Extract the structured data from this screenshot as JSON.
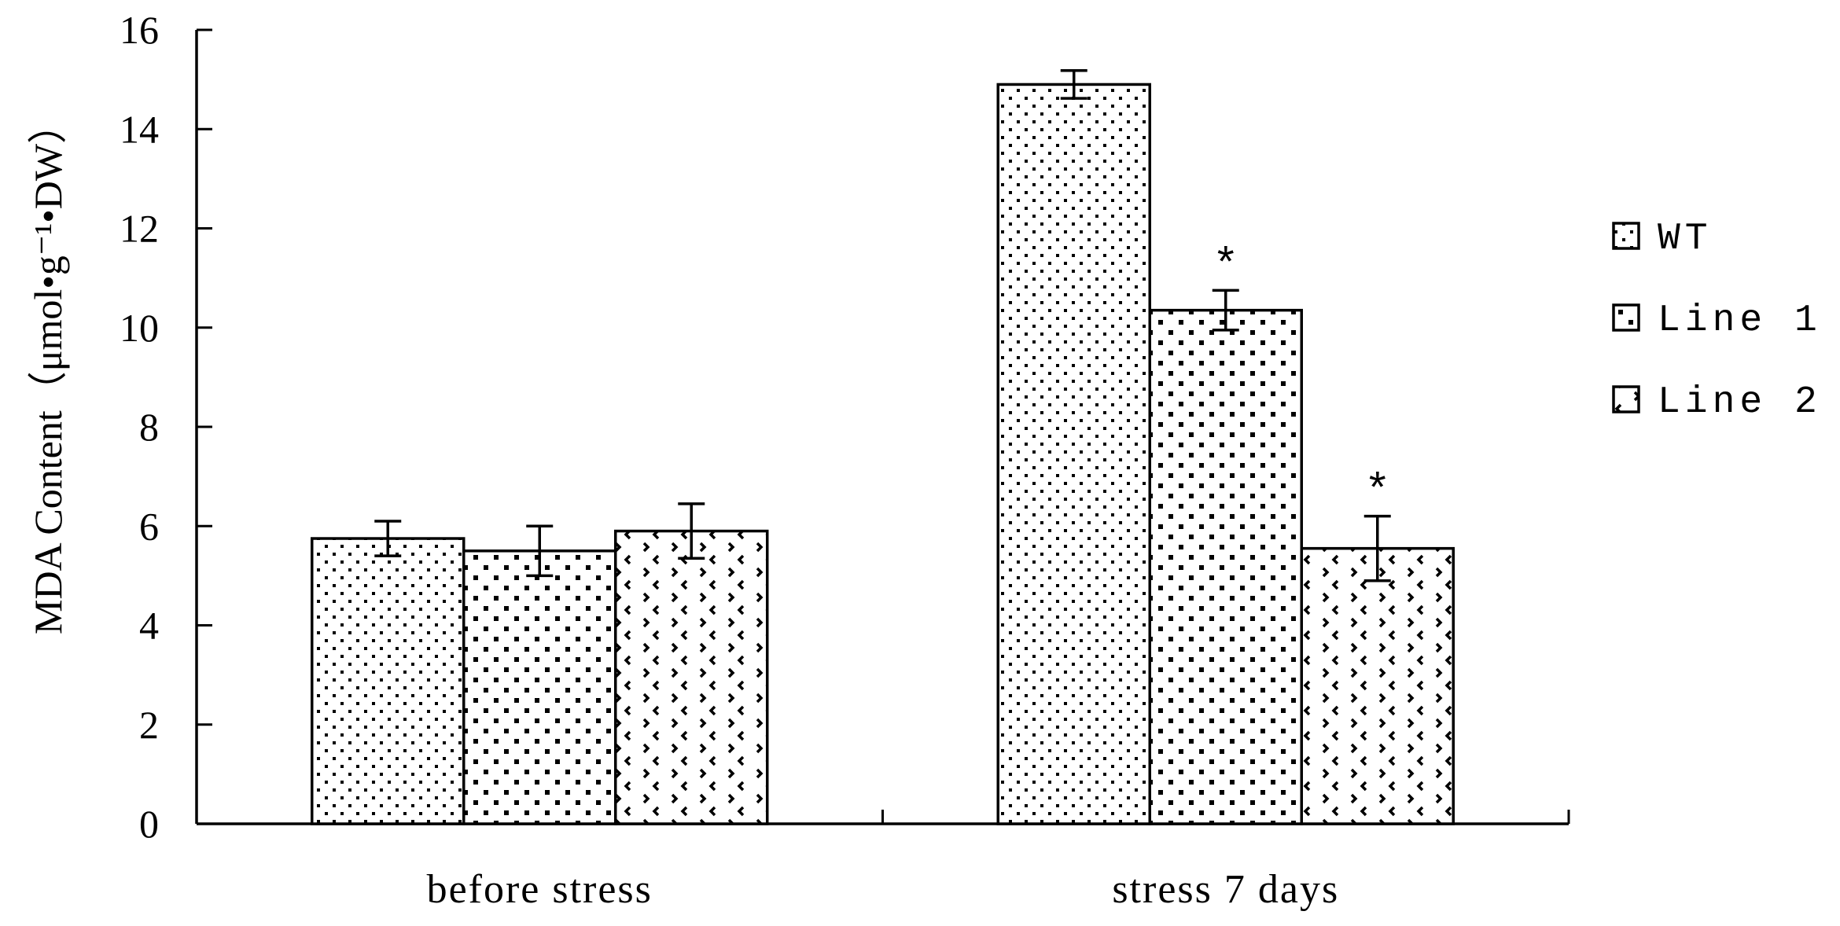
{
  "chart_data": {
    "type": "bar",
    "categories": [
      "before stress",
      "stress 7 days"
    ],
    "series": [
      {
        "name": "WT",
        "values": [
          5.75,
          14.9
        ],
        "errors": [
          0.35,
          0.28
        ],
        "pattern": "fine-dots"
      },
      {
        "name": "Line 1",
        "values": [
          5.5,
          10.35
        ],
        "errors": [
          0.5,
          0.4
        ],
        "pattern": "square-dots"
      },
      {
        "name": "Line 2",
        "values": [
          5.9,
          5.55
        ],
        "errors": [
          0.55,
          0.65
        ],
        "pattern": "chevrons"
      }
    ],
    "significance": [
      [
        null,
        null,
        null
      ],
      [
        null,
        "*",
        "*"
      ]
    ],
    "ylabel": "MDA Content（μmol•g⁻¹•DW）",
    "xlabel": "",
    "ylim": [
      0,
      16
    ],
    "yticks": [
      0,
      2,
      4,
      6,
      8,
      10,
      12,
      14,
      16
    ],
    "legend_position": "right",
    "grid": false
  }
}
